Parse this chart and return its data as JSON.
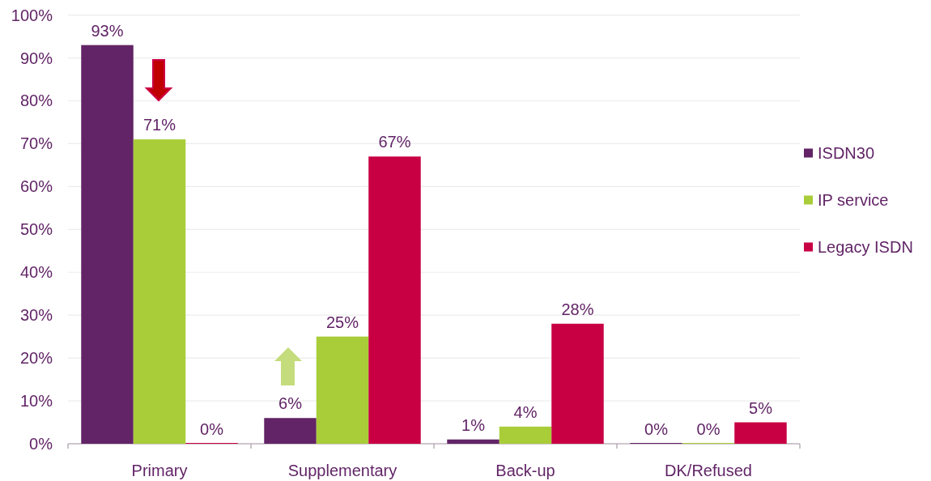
{
  "chart_data": {
    "type": "bar",
    "categories": [
      "Primary",
      "Supplementary",
      "Back-up",
      "DK/Refused"
    ],
    "series": [
      {
        "name": "ISDN30",
        "color": "#622466",
        "values": [
          93,
          6,
          1,
          0
        ],
        "value_labels": [
          "93%",
          "6%",
          "1%",
          "0%"
        ]
      },
      {
        "name": "IP service",
        "color": "#a8cd38",
        "values": [
          71,
          25,
          4,
          0
        ],
        "value_labels": [
          "71%",
          "25%",
          "4%",
          "0%"
        ]
      },
      {
        "name": "Legacy ISDN",
        "color": "#c80043",
        "values": [
          0,
          67,
          28,
          5
        ],
        "value_labels": [
          "0%",
          "67%",
          "28%",
          "5%"
        ]
      }
    ],
    "ylim": [
      0,
      100
    ],
    "yticks": [
      {
        "value": 0,
        "label": "0%"
      },
      {
        "value": 10,
        "label": "10%"
      },
      {
        "value": 20,
        "label": "20%"
      },
      {
        "value": 30,
        "label": "30%"
      },
      {
        "value": 40,
        "label": "40%"
      },
      {
        "value": 50,
        "label": "50%"
      },
      {
        "value": 60,
        "label": "60%"
      },
      {
        "value": 70,
        "label": "70%"
      },
      {
        "value": 80,
        "label": "80%"
      },
      {
        "value": 90,
        "label": "90%"
      },
      {
        "value": 100,
        "label": "100%"
      }
    ],
    "grid": "y",
    "legend": "right"
  }
}
